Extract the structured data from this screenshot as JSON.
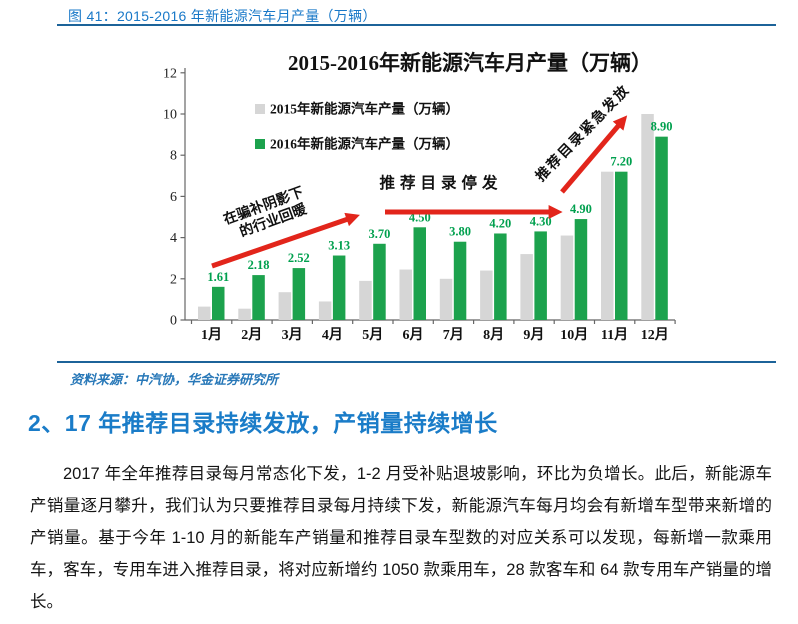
{
  "page": {
    "caption": "图 41：2015-2016 年新能源汽车月产量（万辆）",
    "source": "资料来源：中汽协，华金证券研究所",
    "section_heading": "2、17 年推荐目录持续发放，产销量持续增长",
    "paragraph": "2017 年全年推荐目录每月常态化下发，1-2 月受补贴退坡影响，环比为负增长。此后，新能源车产销量逐月攀升，我们认为只要推荐目录每月持续下发，新能源汽车每月均会有新增车型带来新增的产销量。基于今年 1-10 月的新能车产销量和推荐目录车型数的对应关系可以发现，每新增一款乘用车，客车，专用车进入推荐目录，将对应新增约 1050 款乘用车，28 款客车和 64 款专用车产销量的增长。"
  },
  "colors": {
    "caption_blue": "#1878C8",
    "rule_blue": "#1C6399",
    "heading_blue": "#1A7CC8",
    "source_blue": "#2878B8",
    "text_black": "#141414",
    "bar_2015_gray": "#D6D6D6",
    "bar_2016_green": "#1CA24D",
    "label_green": "#00A04E",
    "arrow_red": "#E2251B"
  },
  "chart_data": {
    "type": "bar",
    "title": "2015-2016年新能源汽车月产量（万辆）",
    "categories": [
      "1月",
      "2月",
      "3月",
      "4月",
      "5月",
      "6月",
      "7月",
      "8月",
      "9月",
      "10月",
      "11月",
      "12月"
    ],
    "series": [
      {
        "name": "2015年新能源汽车产量（万辆）",
        "values": [
          0.65,
          0.55,
          1.35,
          0.9,
          1.9,
          2.45,
          2.0,
          2.4,
          3.2,
          4.1,
          7.2,
          10.0
        ]
      },
      {
        "name": "2016年新能源汽车产量（万辆）",
        "values": [
          1.61,
          2.18,
          2.52,
          3.13,
          3.7,
          4.5,
          3.8,
          4.2,
          4.3,
          4.9,
          7.2,
          8.9
        ],
        "labels": [
          "1.61",
          "2.18",
          "2.52",
          "3.13",
          "3.70",
          "4.50",
          "3.80",
          "4.20",
          "4.30",
          "4.90",
          "7.20",
          "8.90"
        ]
      }
    ],
    "xlabel": "",
    "ylabel": "",
    "ylim": [
      0,
      12
    ],
    "yticks": [
      0,
      2,
      4,
      6,
      8,
      10,
      12
    ],
    "grid": false,
    "legend_position": "inside-top-left",
    "annotations": [
      {
        "lines": [
          "在骗补阴影下",
          "的行业回暖"
        ]
      },
      {
        "lines": [
          "推荐目录停发"
        ]
      },
      {
        "lines": [
          "推荐目录紧急发放"
        ]
      }
    ]
  }
}
